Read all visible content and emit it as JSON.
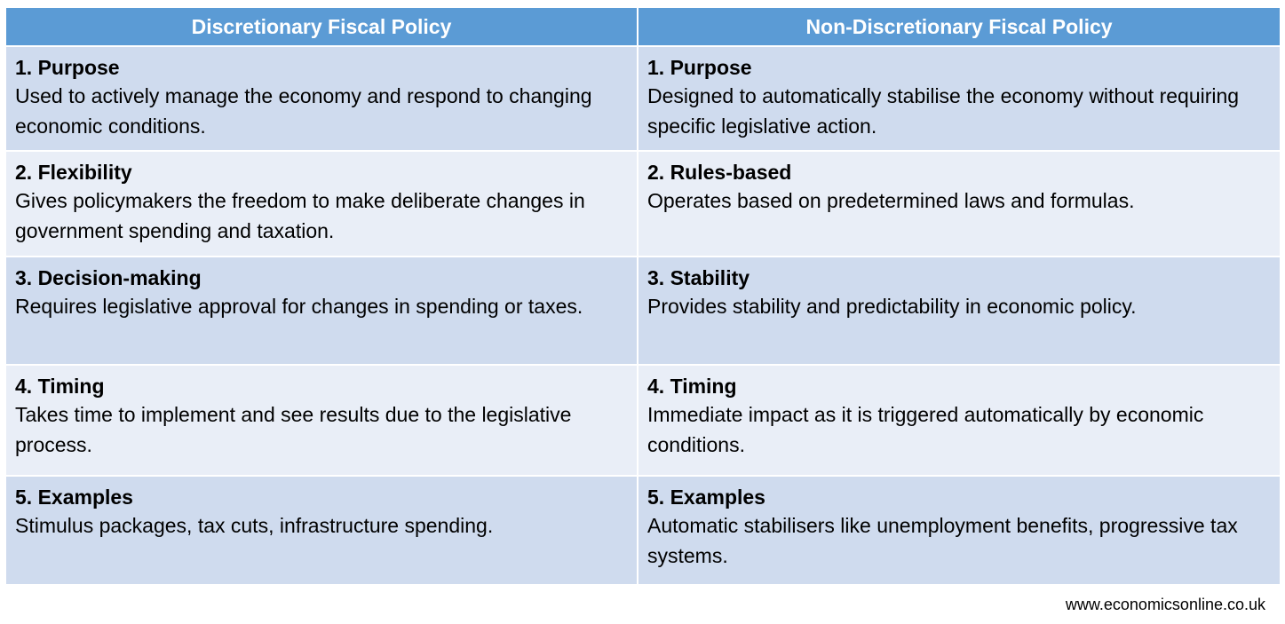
{
  "headers": {
    "left": "Discretionary Fiscal Policy",
    "right": "Non-Discretionary Fiscal Policy"
  },
  "rows": [
    {
      "left": {
        "title": "1. Purpose",
        "text": "Used to actively manage the economy and respond to changing economic conditions."
      },
      "right": {
        "title": "1. Purpose",
        "text": "Designed to automatically stabilise the economy without requiring specific legislative action."
      }
    },
    {
      "left": {
        "title": "2. Flexibility",
        "text": "Gives policymakers the freedom to make deliberate changes in government spending and taxation."
      },
      "right": {
        "title": "2. Rules-based",
        "text": "Operates based on predetermined laws and formulas."
      }
    },
    {
      "left": {
        "title": "3. Decision-making",
        "text": "Requires legislative approval for changes in spending or taxes."
      },
      "right": {
        "title": "3. Stability",
        "text": "Provides stability and predictability in economic policy."
      }
    },
    {
      "left": {
        "title": "4. Timing",
        "text": "Takes time to implement and see results due to the legislative process."
      },
      "right": {
        "title": "4. Timing",
        "text": "Immediate impact as it is triggered automatically by economic conditions."
      }
    },
    {
      "left": {
        "title": "5. Examples",
        "text": "Stimulus packages, tax cuts, infrastructure spending."
      },
      "right": {
        "title": "5. Examples",
        "text": "Automatic stabilisers like unemployment benefits, progressive tax systems."
      }
    }
  ],
  "footer": "www.economicsonline.co.uk",
  "colors": {
    "header_bg": "#5b9bd5",
    "row_dark": "#cfdbee",
    "row_light": "#e9eef7"
  }
}
